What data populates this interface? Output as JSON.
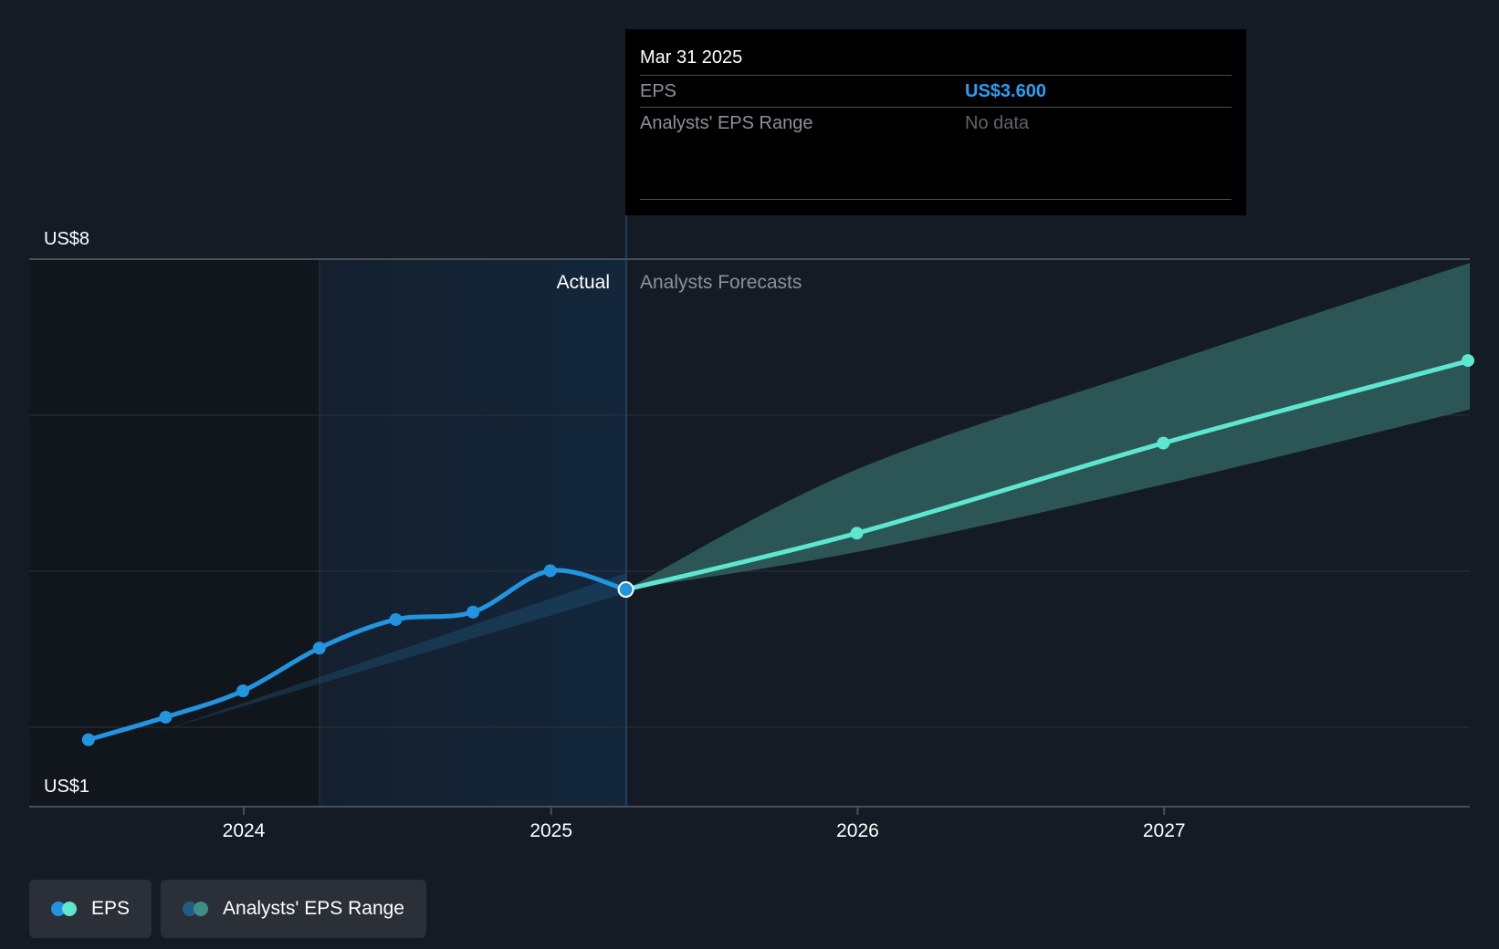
{
  "tooltip": {
    "date": "Mar 31 2025",
    "rows": [
      {
        "label": "EPS",
        "value": "US$3.600"
      },
      {
        "label": "Analysts' EPS Range",
        "value": "No data"
      }
    ]
  },
  "legend": [
    {
      "label": "EPS",
      "icon": "eps-dots-icon"
    },
    {
      "label": "Analysts' EPS Range",
      "icon": "range-dots-icon"
    }
  ],
  "colors": {
    "background": "#151b24",
    "actual_line": "#2394e0",
    "forecast_line": "#5ee6d0",
    "range_fill": "#2d5a5a",
    "highlight": "#13263a",
    "grid": "#333a44",
    "text": "#ffffff",
    "muted_text": "#8c9199"
  },
  "chart_data": {
    "type": "line",
    "title": "",
    "xlabel": "",
    "ylabel": "",
    "x_ticks": [
      "2024",
      "2025",
      "2026",
      "2027"
    ],
    "y_tick_labels": [
      {
        "value": 8,
        "label": "US$8"
      },
      {
        "value": 1,
        "label": "US$1"
      }
    ],
    "ylim": [
      1,
      8
    ],
    "grid": true,
    "region_labels": {
      "actual": "Actual",
      "forecast": "Analysts Forecasts"
    },
    "highlighted_date": "2025-03-31",
    "series": [
      {
        "name": "EPS",
        "kind": "actual",
        "points": [
          {
            "x": "2023-06-30",
            "y": 1.6
          },
          {
            "x": "2023-09-30",
            "y": 1.9
          },
          {
            "x": "2023-12-31",
            "y": 2.25
          },
          {
            "x": "2024-03-31",
            "y": 2.82
          },
          {
            "x": "2024-06-30",
            "y": 3.2
          },
          {
            "x": "2024-09-30",
            "y": 3.3
          },
          {
            "x": "2024-12-31",
            "y": 3.85
          },
          {
            "x": "2025-03-31",
            "y": 3.6
          }
        ]
      },
      {
        "name": "EPS",
        "kind": "forecast",
        "points": [
          {
            "x": "2025-03-31",
            "y": 3.6
          },
          {
            "x": "2025-12-31",
            "y": 4.35
          },
          {
            "x": "2026-12-31",
            "y": 5.55
          },
          {
            "x": "2027-12-31",
            "y": 6.65
          }
        ]
      },
      {
        "name": "Analysts' EPS Range",
        "kind": "range",
        "points": [
          {
            "x": "2025-03-31",
            "low": 3.6,
            "high": 3.6
          },
          {
            "x": "2025-12-31",
            "low": 4.1,
            "high": 5.2
          },
          {
            "x": "2026-12-31",
            "low": 5.0,
            "high": 6.6
          },
          {
            "x": "2027-12-31",
            "low": 6.0,
            "high": 7.95
          }
        ]
      }
    ]
  }
}
